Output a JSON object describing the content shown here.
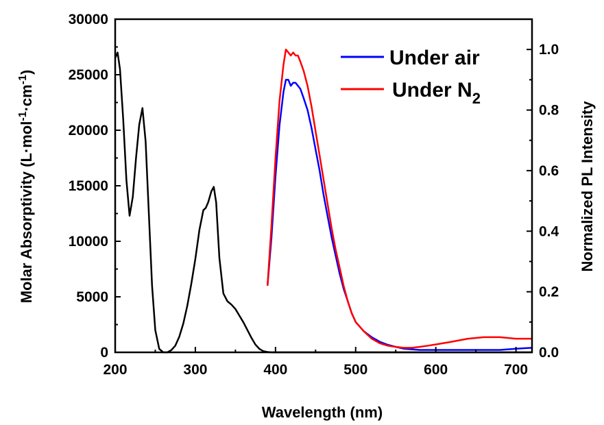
{
  "chart_data": {
    "type": "line",
    "xlabel": "Wavelength (nm)",
    "ylabel_left": {
      "base": "Molar Absorptivity (L·mol",
      "sup1": "-1",
      "mid": "·cm",
      "sup2": "-1",
      "end": ")"
    },
    "ylabel_right": "Normalized PL Intensity",
    "xlim": [
      200,
      720
    ],
    "ylim_left": [
      0,
      30000
    ],
    "ylim_right": [
      0,
      1.1
    ],
    "x_ticks": [
      "200",
      "300",
      "400",
      "500",
      "600",
      "700"
    ],
    "y_left_ticks": [
      "0",
      "5000",
      "10000",
      "15000",
      "20000",
      "25000",
      "30000"
    ],
    "y_right_ticks": [
      "0.0",
      "0.2",
      "0.4",
      "0.6",
      "0.8",
      "1.0"
    ],
    "legend": {
      "position": "top-right",
      "items": [
        {
          "label": "Under air",
          "color": "#0000ff"
        },
        {
          "label_main": "Under N",
          "label_sub": "2",
          "color": "#ff0000"
        }
      ]
    },
    "series": [
      {
        "axis": "left",
        "color": "#000000",
        "x": [
          200,
          203,
          206,
          210,
          214,
          218,
          222,
          226,
          230,
          234,
          238,
          242,
          246,
          250,
          255,
          260,
          265,
          270,
          275,
          280,
          285,
          290,
          295,
          300,
          305,
          310,
          313,
          316,
          320,
          323,
          326,
          330,
          335,
          340,
          345,
          350,
          355,
          360,
          365,
          370,
          375,
          380,
          385,
          390,
          395,
          400,
          450,
          500,
          550,
          600,
          650,
          700,
          720
        ],
        "y": [
          26500,
          27000,
          25500,
          21000,
          15500,
          12300,
          14000,
          17500,
          20500,
          22000,
          19000,
          12500,
          6000,
          2000,
          300,
          0,
          0,
          200,
          600,
          1400,
          2600,
          4200,
          6200,
          8400,
          11000,
          12800,
          13000,
          13500,
          14500,
          14900,
          13500,
          8500,
          5300,
          4600,
          4300,
          3900,
          3300,
          2700,
          2000,
          1300,
          700,
          300,
          100,
          30,
          0,
          0,
          0,
          0,
          0,
          0,
          0,
          0,
          0
        ]
      },
      {
        "name": "Under air",
        "axis": "right",
        "color": "#0000ff",
        "x": [
          390,
          395,
          400,
          405,
          410,
          413,
          416,
          419,
          422,
          425,
          428,
          431,
          435,
          440,
          445,
          450,
          455,
          460,
          465,
          470,
          475,
          480,
          485,
          490,
          495,
          500,
          510,
          520,
          530,
          540,
          550,
          560,
          570,
          580,
          590,
          600,
          620,
          640,
          660,
          680,
          700,
          720
        ],
        "y": [
          0.22,
          0.38,
          0.58,
          0.75,
          0.86,
          0.9,
          0.9,
          0.88,
          0.89,
          0.89,
          0.88,
          0.87,
          0.84,
          0.8,
          0.74,
          0.67,
          0.6,
          0.52,
          0.45,
          0.38,
          0.32,
          0.26,
          0.21,
          0.17,
          0.13,
          0.1,
          0.07,
          0.05,
          0.035,
          0.025,
          0.018,
          0.012,
          0.01,
          0.008,
          0.008,
          0.008,
          0.008,
          0.008,
          0.008,
          0.008,
          0.012,
          0.015
        ]
      },
      {
        "name": "Under N2",
        "axis": "right",
        "color": "#ff0000",
        "x": [
          390,
          395,
          400,
          405,
          410,
          413,
          416,
          419,
          422,
          425,
          428,
          431,
          435,
          440,
          445,
          450,
          455,
          460,
          465,
          470,
          475,
          480,
          485,
          490,
          495,
          500,
          510,
          520,
          530,
          540,
          550,
          560,
          570,
          580,
          590,
          600,
          620,
          640,
          660,
          680,
          700,
          720
        ],
        "y": [
          0.22,
          0.42,
          0.64,
          0.83,
          0.95,
          1.0,
          0.99,
          0.98,
          0.99,
          0.98,
          0.98,
          0.96,
          0.93,
          0.88,
          0.81,
          0.73,
          0.65,
          0.57,
          0.49,
          0.41,
          0.34,
          0.28,
          0.22,
          0.17,
          0.13,
          0.1,
          0.07,
          0.045,
          0.03,
          0.022,
          0.018,
          0.015,
          0.015,
          0.018,
          0.022,
          0.026,
          0.035,
          0.045,
          0.05,
          0.05,
          0.045,
          0.045
        ]
      }
    ]
  }
}
